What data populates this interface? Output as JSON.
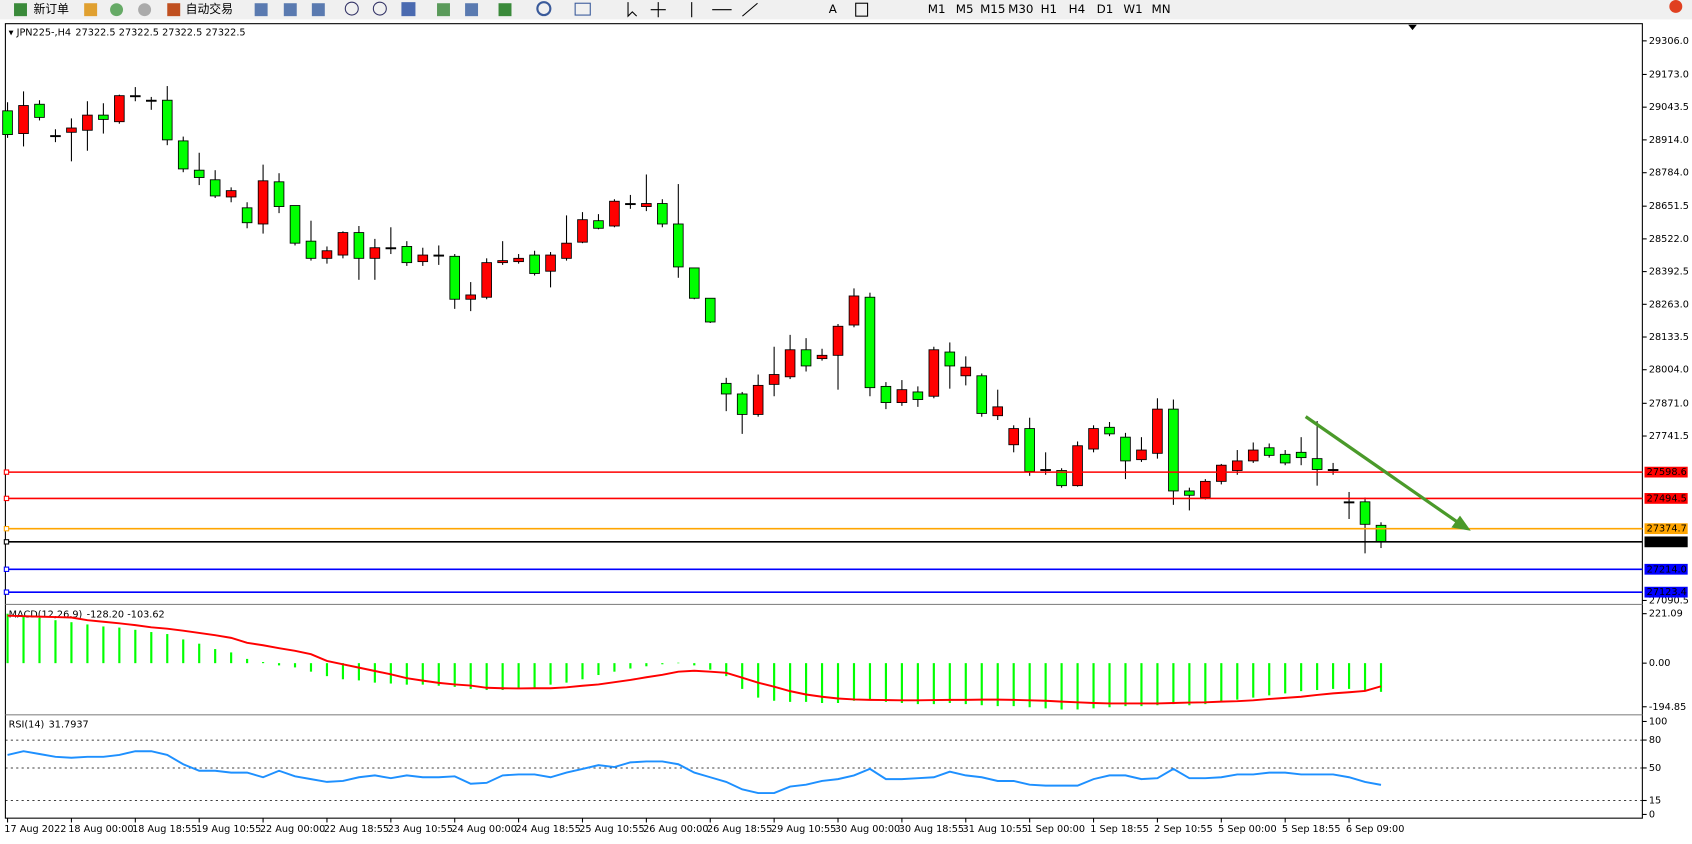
{
  "toolbar": {
    "buttons": [
      "新订单",
      "自动交易"
    ],
    "periods": [
      "M1",
      "M5",
      "M15",
      "M30",
      "H1",
      "H4",
      "D1",
      "W1",
      "MN"
    ]
  },
  "chart_data": [
    {
      "type": "candlestick",
      "title": "JPN225-,H4",
      "ohlc_header": [
        27322.5,
        27322.5,
        27322.5,
        27322.5
      ],
      "up_color": "#ff0000",
      "down_color": "#00ff00",
      "ylim": [
        27081,
        29374
      ],
      "yticks": [
        {
          "value": 29306,
          "label": "29306.0"
        },
        {
          "value": 29173,
          "label": "29173.0"
        },
        29043.5,
        {
          "value": 28914,
          "label": "28914.0"
        },
        {
          "value": 28784,
          "label": "28784.0"
        },
        28651.5,
        {
          "value": 28522,
          "label": "28522.0"
        },
        28392.5,
        {
          "value": 28263,
          "label": "28263.0"
        },
        28133.5,
        {
          "value": 28004,
          "label": "28004.0"
        },
        {
          "value": 27871,
          "label": "27871.0"
        },
        27741.5,
        27090.5
      ],
      "levels": [
        {
          "value": 27598.6,
          "color": "#ff0000"
        },
        {
          "value": 27494.5,
          "color": "#ff0000"
        },
        {
          "value": 27374.7,
          "color": "#ffa500"
        },
        {
          "value": 27322.5,
          "color": "#000000"
        },
        {
          "value": 27214,
          "label": "27214.0",
          "color": "#0000ff"
        },
        {
          "value": 27123.4,
          "color": "#0000ff"
        }
      ],
      "xticks": [
        {
          "value": 0,
          "label": "17 Aug 2022"
        },
        {
          "value": 4,
          "label": "18 Aug 00:00"
        },
        {
          "value": 8,
          "label": "18 Aug 18:55"
        },
        {
          "value": 12,
          "label": "19 Aug 10:55"
        },
        {
          "value": 16,
          "label": "22 Aug 00:00"
        },
        {
          "value": 20,
          "label": "22 Aug 18:55"
        },
        {
          "value": 24,
          "label": "23 Aug 10:55"
        },
        {
          "value": 28,
          "label": "24 Aug 00:00"
        },
        {
          "value": 32,
          "label": "24 Aug 18:55"
        },
        {
          "value": 36,
          "label": "25 Aug 10:55"
        },
        {
          "value": 40,
          "label": "26 Aug 00:00"
        },
        {
          "value": 44,
          "label": "26 Aug 18:55"
        },
        {
          "value": 48,
          "label": "29 Aug 10:55"
        },
        {
          "value": 52,
          "label": "30 Aug 00:00"
        },
        {
          "value": 56,
          "label": "30 Aug 18:55"
        },
        {
          "value": 60,
          "label": "31 Aug 10:55"
        },
        {
          "value": 64,
          "label": "1 Sep 00:00"
        },
        {
          "value": 68,
          "label": "1 Sep 18:55"
        },
        {
          "value": 72,
          "label": "2 Sep 10:55"
        },
        {
          "value": 76,
          "label": "5 Sep 00:00"
        },
        {
          "value": 80,
          "label": "5 Sep 18:55"
        },
        {
          "value": 84,
          "label": "6 Sep 09:00"
        }
      ],
      "ohlc": [
        [
          29029,
          29063,
          28922,
          28935
        ],
        [
          28939,
          29106,
          28888,
          29050
        ],
        [
          29055,
          29071,
          28991,
          29003
        ],
        [
          28931,
          28956,
          28905,
          28931
        ],
        [
          28944,
          28999,
          28829,
          28961
        ],
        [
          28952,
          29067,
          28871,
          29012
        ],
        [
          29012,
          29059,
          28939,
          28995
        ],
        [
          28986,
          29093,
          28978,
          29089
        ],
        [
          29089,
          29123,
          29067,
          29089
        ],
        [
          29071,
          29084,
          29033,
          29071
        ],
        [
          29071,
          29127,
          28893,
          28914
        ],
        [
          28910,
          28927,
          28786,
          28799
        ],
        [
          28794,
          28863,
          28735,
          28765
        ],
        [
          28756,
          28794,
          28684,
          28692
        ],
        [
          28688,
          28726,
          28667,
          28713
        ],
        [
          28645,
          28667,
          28564,
          28586
        ],
        [
          28581,
          28816,
          28543,
          28752
        ],
        [
          28748,
          28782,
          28624,
          28650
        ],
        [
          28654,
          28654,
          28496,
          28505
        ],
        [
          28513,
          28594,
          28436,
          28445
        ],
        [
          28445,
          28492,
          28424,
          28475
        ],
        [
          28458,
          28552,
          28445,
          28547
        ],
        [
          28547,
          28573,
          28360,
          28445
        ],
        [
          28445,
          28522,
          28360,
          28487
        ],
        [
          28487,
          28568,
          28462,
          28487
        ],
        [
          28492,
          28513,
          28415,
          28428
        ],
        [
          28432,
          28487,
          28415,
          28458
        ],
        [
          28458,
          28496,
          28419,
          28458
        ],
        [
          28453,
          28462,
          28245,
          28283
        ],
        [
          28283,
          28351,
          28236,
          28300
        ],
        [
          28291,
          28445,
          28283,
          28428
        ],
        [
          28428,
          28513,
          28419,
          28436
        ],
        [
          28432,
          28462,
          28424,
          28445
        ],
        [
          28458,
          28475,
          28377,
          28385
        ],
        [
          28394,
          28470,
          28330,
          28458
        ],
        [
          28445,
          28615,
          28436,
          28505
        ],
        [
          28509,
          28628,
          28505,
          28598
        ],
        [
          28594,
          28620,
          28560,
          28564
        ],
        [
          28573,
          28679,
          28568,
          28671
        ],
        [
          28662,
          28696,
          28641,
          28662
        ],
        [
          28650,
          28777,
          28632,
          28662
        ],
        [
          28662,
          28679,
          28568,
          28581
        ],
        [
          28581,
          28739,
          28368,
          28411
        ],
        [
          28407,
          28407,
          28283,
          28287
        ],
        [
          28287,
          28287,
          28189,
          28193
        ],
        [
          27950,
          27972,
          27840,
          27908
        ],
        [
          27908,
          27916,
          27750,
          27827
        ],
        [
          27827,
          27985,
          27818,
          27942
        ],
        [
          27946,
          28095,
          27899,
          27985
        ],
        [
          27976,
          28142,
          27967,
          28083
        ],
        [
          28083,
          28129,
          27997,
          28019
        ],
        [
          28048,
          28087,
          28040,
          28061
        ],
        [
          28061,
          28185,
          27925,
          28176
        ],
        [
          28181,
          28326,
          28172,
          28296
        ],
        [
          28291,
          28309,
          27899,
          27933
        ],
        [
          27938,
          27955,
          27848,
          27874
        ],
        [
          27874,
          27963,
          27861,
          27925
        ],
        [
          27916,
          27938,
          27857,
          27886
        ],
        [
          27899,
          28095,
          27891,
          28083
        ],
        [
          28074,
          28112,
          27929,
          28019
        ],
        [
          27980,
          28057,
          27942,
          28014
        ],
        [
          27980,
          27989,
          27818,
          27831
        ],
        [
          27822,
          27925,
          27805,
          27857
        ],
        [
          27707,
          27784,
          27677,
          27771
        ],
        [
          27771,
          27814,
          27584,
          27601
        ],
        [
          27609,
          27677,
          27588,
          27609
        ],
        [
          27605,
          27614,
          27537,
          27545
        ],
        [
          27545,
          27720,
          27541,
          27703
        ],
        [
          27690,
          27784,
          27677,
          27771
        ],
        [
          27776,
          27797,
          27741,
          27750
        ],
        [
          27737,
          27754,
          27571,
          27643
        ],
        [
          27648,
          27737,
          27639,
          27686
        ],
        [
          27673,
          27891,
          27652,
          27848
        ],
        [
          27848,
          27886,
          27469,
          27524
        ],
        [
          27524,
          27537,
          27447,
          27507
        ],
        [
          27498,
          27571,
          27490,
          27562
        ],
        [
          27562,
          27631,
          27550,
          27626
        ],
        [
          27605,
          27686,
          27588,
          27643
        ],
        [
          27643,
          27716,
          27635,
          27686
        ],
        [
          27695,
          27712,
          27656,
          27665
        ],
        [
          27669,
          27686,
          27626,
          27635
        ],
        [
          27677,
          27737,
          27626,
          27656
        ],
        [
          27652,
          27801,
          27545,
          27609
        ],
        [
          27609,
          27635,
          27588,
          27609
        ],
        [
          27481,
          27520,
          27413,
          27481
        ],
        [
          27481,
          27498,
          27277,
          27392
        ],
        [
          27388,
          27400,
          27298,
          27322.5
        ]
      ]
    },
    {
      "type": "macd",
      "title": "MACD(12,26,9)",
      "indicator_values": [
        {
          "value": -128.2,
          "label": "-128.20"
        },
        -103.62
      ],
      "ylim": [
        -226,
        255
      ],
      "yticks": [
        221.09,
        {
          "value": 0,
          "label": "0.00"
        },
        -194.85
      ],
      "series": [
        {
          "color": "#00ff00",
          "values": [
            221,
            212,
            202,
            192,
            183,
            173,
            164,
            159,
            149,
            139,
            130,
            106,
            87,
            63,
            48,
            19,
            5,
            -10,
            -19,
            -38,
            -58,
            -72,
            -77,
            -87,
            -91,
            -96,
            -96,
            -101,
            -106,
            -115,
            -120,
            -120,
            -115,
            -111,
            -96,
            -87,
            -72,
            -53,
            -38,
            -24,
            -14,
            -5,
            2,
            -10,
            -29,
            -58,
            -115,
            -154,
            -168,
            -173,
            -173,
            -178,
            -178,
            -168,
            -163,
            -173,
            -178,
            -183,
            -183,
            -178,
            -183,
            -188,
            -192,
            -192,
            -197,
            -202,
            -207,
            -207,
            -202,
            -197,
            -192,
            -192,
            -188,
            -183,
            -188,
            -183,
            -173,
            -163,
            -154,
            -144,
            -135,
            -125,
            -120,
            -115,
            -115,
            -125,
            -128.2
          ]
        },
        {
          "color": "#ff0000",
          "values": [
            212,
            210,
            208,
            206,
            204,
            192,
            185,
            178,
            170,
            160,
            154,
            145,
            135,
            125,
            113,
            91,
            80,
            67,
            55,
            40,
            10,
            -5,
            -20,
            -35,
            -50,
            -67,
            -78,
            -88,
            -95,
            -100,
            -110,
            -112,
            -113,
            -112,
            -112,
            -108,
            -101,
            -95,
            -85,
            -75,
            -63,
            -52,
            -38,
            -34,
            -38,
            -43,
            -65,
            -87,
            -105,
            -125,
            -140,
            -150,
            -158,
            -162,
            -164,
            -165,
            -166,
            -166,
            -165,
            -164,
            -164,
            -163,
            -163,
            -164,
            -166,
            -168,
            -172,
            -175,
            -178,
            -180,
            -180,
            -180,
            -180,
            -178,
            -176,
            -175,
            -172,
            -170,
            -166,
            -160,
            -155,
            -150,
            -142,
            -135,
            -130,
            -124,
            -103.62
          ]
        }
      ]
    },
    {
      "type": "rsi",
      "title": "RSI(14)",
      "indicator_values": [
        31.7937
      ],
      "ylim": [
        -4,
        106
      ],
      "yticks": [
        100,
        80,
        50,
        15,
        0
      ],
      "levels": [
        80,
        50,
        15
      ],
      "series": [
        {
          "color": "#1e90ff",
          "values": [
            64,
            68,
            65,
            62,
            61,
            62,
            62,
            64,
            68,
            68,
            64,
            54,
            47,
            47,
            45,
            45,
            40,
            47,
            41,
            38,
            35,
            36,
            40,
            42,
            39,
            42,
            40,
            40,
            41,
            33,
            34,
            42,
            43,
            43,
            40,
            45,
            49,
            53,
            51,
            56,
            57,
            57,
            54,
            45,
            40,
            35,
            27,
            23,
            23,
            30,
            32,
            36,
            38,
            42,
            49,
            38,
            38,
            39,
            40,
            46,
            42,
            40,
            36,
            36,
            32,
            31,
            31,
            31,
            38,
            42,
            42,
            38,
            39,
            49,
            39,
            39,
            40,
            43,
            43,
            45,
            45,
            43,
            43,
            43,
            40,
            35,
            31.7937
          ]
        }
      ]
    }
  ]
}
